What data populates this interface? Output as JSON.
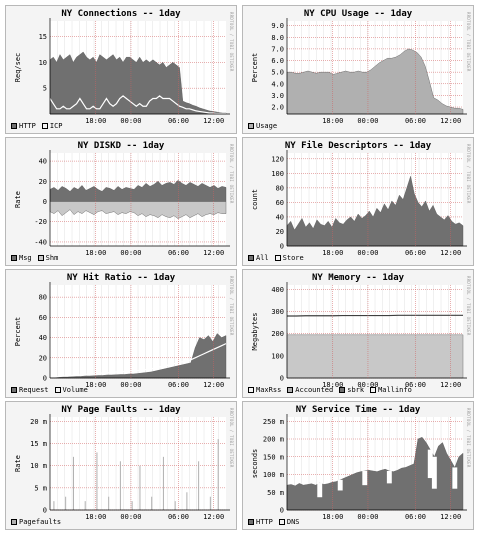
{
  "panels": [
    {
      "title": "NY Connections -- 1day",
      "ylabel": "Req/sec",
      "yticks": [
        "5",
        "10",
        "15"
      ],
      "ytick_values": [
        5,
        10,
        15
      ],
      "ylim": [
        0,
        18
      ],
      "legend": [
        {
          "label": "HTTP",
          "color": "#707070"
        },
        {
          "label": "ICP",
          "color": "#f4f4f4"
        }
      ],
      "watermark": "RRDTOOL / TOBI OETIKER",
      "chart_data": {
        "type": "area",
        "xticks": [
          "18:00",
          "00:00",
          "06:00",
          "12:00"
        ],
        "series": [
          {
            "name": "HTTP",
            "kind": "area",
            "color": "#707070",
            "values": [
              10.5,
              11,
              10,
              11.5,
              10.5,
              11,
              11.5,
              10,
              11,
              11.5,
              12,
              11,
              10.5,
              11,
              10,
              11.5,
              11,
              10.5,
              11,
              11.5,
              10.5,
              11,
              10,
              11,
              11,
              10.5,
              10,
              11,
              10,
              10.5,
              10,
              10.5,
              10,
              9.5,
              10,
              9,
              9.5,
              10,
              9.5,
              9,
              2.5,
              2.2,
              2,
              1.7,
              1.5,
              1.2,
              1,
              0.8,
              0.6,
              0.5,
              0.4,
              0.3,
              0.2,
              0.2
            ]
          },
          {
            "name": "ICP",
            "kind": "line",
            "color": "#ffffff",
            "values": [
              3,
              2,
              1,
              1,
              1.5,
              1,
              1,
              1.5,
              2,
              3,
              2,
              1,
              1,
              1.5,
              1,
              1,
              2,
              3,
              2,
              1.5,
              2,
              3,
              3.5,
              3,
              2.5,
              2,
              1.5,
              2,
              1.5,
              1.5,
              2.5,
              3,
              3,
              3.5,
              3,
              3,
              3,
              2.5,
              2,
              1.5,
              1.3,
              1,
              1,
              0.8,
              0.6,
              0.5,
              0.4,
              0.3,
              0.2,
              0.2,
              0.1,
              0.1,
              0.1,
              0.1
            ]
          }
        ]
      }
    },
    {
      "title": "NY CPU Usage -- 1day",
      "ylabel": "Percent",
      "yticks": [
        "2.0",
        "3.0",
        "4.0",
        "5.0",
        "6.0",
        "7.0",
        "8.0",
        "9.0"
      ],
      "ytick_values": [
        2,
        3,
        4,
        5,
        6,
        7,
        8,
        9
      ],
      "ylim": [
        1.4,
        9.4
      ],
      "legend": [
        {
          "label": "Usage",
          "color": "#b0b0b0"
        }
      ],
      "watermark": "RRDTOOL / TOBI OETIKER",
      "chart_data": {
        "type": "area",
        "xticks": [
          "18:00",
          "00:00",
          "06:00",
          "12:00"
        ],
        "series": [
          {
            "name": "Usage",
            "kind": "area",
            "color": "#b0b0b0",
            "values": [
              5.0,
              5.0,
              4.9,
              4.9,
              5.0,
              5.1,
              5.0,
              4.9,
              5.0,
              5.0,
              5.0,
              4.8,
              4.9,
              5.0,
              5.1,
              5.0,
              5.0,
              5.1,
              5.0,
              5.0,
              5.2,
              5.5,
              5.8,
              6.0,
              6.2,
              6.2,
              6.3,
              6.5,
              6.8,
              7.0,
              6.9,
              6.7,
              6.3,
              5.5,
              4.2,
              2.8,
              2.6,
              2.3,
              2.1,
              2.0,
              1.9,
              1.9,
              1.8
            ]
          }
        ]
      }
    },
    {
      "title": "NY DISKD -- 1day",
      "ylabel": "Rate",
      "yticks": [
        "-40",
        "-20",
        "0",
        "20",
        "40"
      ],
      "ytick_values": [
        -40,
        -20,
        0,
        20,
        40
      ],
      "ylim": [
        -44,
        48
      ],
      "legend": [
        {
          "label": "Msg",
          "color": "#707070"
        },
        {
          "label": "Shm",
          "color": "#c8c8c8"
        }
      ],
      "watermark": "RRDTOOL / TOBI OETIKER",
      "chart_data": {
        "type": "area",
        "xticks": [
          "18:00",
          "00:00",
          "06:00",
          "12:00"
        ],
        "series": [
          {
            "name": "Msg",
            "kind": "area",
            "color": "#707070",
            "values": [
              12,
              14,
              11,
              15,
              13,
              10,
              14,
              12,
              16,
              11,
              13,
              15,
              12,
              10,
              14,
              13,
              11,
              15,
              12,
              14,
              13,
              12,
              16,
              14,
              18,
              15,
              17,
              20,
              16,
              18,
              19,
              17,
              21,
              18,
              16,
              19,
              17,
              15,
              18,
              16,
              14,
              16,
              13,
              15,
              14
            ]
          },
          {
            "name": "Shm",
            "kind": "negarea",
            "color": "#c8c8c8",
            "values": [
              -10,
              -12,
              -9,
              -14,
              -11,
              -8,
              -13,
              -10,
              -12,
              -9,
              -11,
              -13,
              -10,
              -9,
              -12,
              -11,
              -10,
              -13,
              -11,
              -12,
              -10,
              -11,
              -14,
              -12,
              -15,
              -13,
              -14,
              -16,
              -13,
              -15,
              -16,
              -14,
              -17,
              -15,
              -13,
              -16,
              -14,
              -12,
              -15,
              -13,
              -12,
              -13,
              -11,
              -12,
              -12
            ]
          }
        ]
      }
    },
    {
      "title": "NY File Descriptors -- 1day",
      "ylabel": "count",
      "yticks": [
        "0",
        "20",
        "40",
        "60",
        "80",
        "100",
        "120"
      ],
      "ytick_values": [
        0,
        20,
        40,
        60,
        80,
        100,
        120
      ],
      "ylim": [
        0,
        128
      ],
      "legend": [
        {
          "label": "All",
          "color": "#707070"
        },
        {
          "label": "Store",
          "color": "#f4f4f4"
        }
      ],
      "watermark": "RRDTOOL / TOBI OETIKER",
      "chart_data": {
        "type": "area",
        "xticks": [
          "18:00",
          "00:00",
          "06:00",
          "12:00"
        ],
        "series": [
          {
            "name": "All",
            "kind": "area",
            "color": "#707070",
            "values": [
              28,
              34,
              22,
              30,
              38,
              26,
              32,
              24,
              36,
              30,
              28,
              34,
              26,
              38,
              32,
              30,
              36,
              40,
              34,
              44,
              38,
              42,
              48,
              40,
              52,
              46,
              58,
              50,
              62,
              56,
              70,
              64,
              80,
              96,
              72,
              60,
              54,
              62,
              48,
              56,
              44,
              40,
              36,
              42,
              34,
              30,
              32,
              28
            ]
          }
        ]
      }
    },
    {
      "title": "NY Hit Ratio -- 1day",
      "ylabel": "Percent",
      "yticks": [
        "0",
        "20",
        "40",
        "60",
        "80"
      ],
      "ytick_values": [
        0,
        20,
        40,
        60,
        80
      ],
      "ylim": [
        0,
        92
      ],
      "legend": [
        {
          "label": "Request",
          "color": "#707070"
        },
        {
          "label": "Volume",
          "color": "#f4f4f4"
        }
      ],
      "watermark": "RRDTOOL / TOBI OETIKER",
      "chart_data": {
        "type": "area",
        "xticks": [
          "18:00",
          "00:00",
          "06:00",
          "12:00"
        ],
        "series": [
          {
            "name": "Request",
            "kind": "area",
            "color": "#707070",
            "values": [
              0.5,
              0.5,
              0.8,
              1,
              1,
              1.2,
              1.5,
              1.5,
              2,
              2,
              2.2,
              2.5,
              2.5,
              3,
              3,
              3.2,
              3.5,
              3.5,
              4,
              4,
              4.5,
              5,
              5.5,
              6,
              7,
              8,
              9,
              10,
              11,
              12,
              13,
              14,
              15,
              30,
              40,
              38,
              42,
              36,
              44,
              40,
              42
            ]
          },
          {
            "name": "Volume",
            "kind": "line",
            "color": "#ffffff",
            "values": [
              1,
              1,
              1.5,
              2,
              2,
              2.5,
              3,
              3,
              3.5,
              4,
              4,
              4.5,
              5,
              5,
              5.5,
              6,
              6,
              6.5,
              7,
              7,
              7.5,
              8,
              8.5,
              9,
              10,
              11,
              12,
              13,
              14,
              15,
              16,
              17,
              18,
              20,
              22,
              24,
              26,
              28,
              30,
              32,
              34
            ]
          }
        ]
      }
    },
    {
      "title": "NY Memory -- 1day",
      "ylabel": "Megabytes",
      "yticks": [
        "0",
        "100",
        "200",
        "300",
        "400"
      ],
      "ytick_values": [
        0,
        100,
        200,
        300,
        400
      ],
      "ylim": [
        0,
        420
      ],
      "legend": [
        {
          "label": "MaxRss",
          "color": "#f4f4f4"
        },
        {
          "label": "Accounted",
          "color": "#b0b0b0"
        },
        {
          "label": "sbrk",
          "color": "#707070"
        },
        {
          "label": "Mallinfo",
          "color": "#f4f4f4"
        }
      ],
      "watermark": "RRDTOOL / TOBI OETIKER",
      "chart_data": {
        "type": "area",
        "xticks": [
          "18:00",
          "00:00",
          "06:00",
          "12:00"
        ],
        "series": [
          {
            "name": "Accounted",
            "kind": "area",
            "color": "#c8c8c8",
            "values": [
              195,
              195,
              195,
              195,
              195,
              195,
              195,
              195,
              195,
              195,
              195,
              195,
              195,
              195,
              195,
              195,
              195,
              195,
              195,
              195
            ]
          },
          {
            "name": "sbrk",
            "kind": "line",
            "color": "#404040",
            "values": [
              280,
              280,
              281,
              281,
              281,
              281,
              282,
              282,
              282,
              282,
              282,
              282,
              283,
              283,
              283,
              283,
              283,
              283,
              283,
              283
            ]
          }
        ]
      }
    },
    {
      "title": "NY Page Faults -- 1day",
      "ylabel": "Rate",
      "yticks": [
        "0",
        "5 m",
        "10 m",
        "15 m",
        "20 m"
      ],
      "ytick_values": [
        0,
        5,
        10,
        15,
        20
      ],
      "ylim": [
        0,
        21
      ],
      "legend": [
        {
          "label": "Pagefaults",
          "color": "#b0b0b0"
        }
      ],
      "watermark": "RRDTOOL / TOBI OETIKER",
      "chart_data": {
        "type": "bar",
        "xticks": [
          "18:00",
          "00:00",
          "06:00",
          "12:00"
        ],
        "series": [
          {
            "name": "Pagefaults",
            "kind": "spikes",
            "color": "#b0b0b0",
            "values": [
              0,
              2,
              0,
              0,
              3,
              0,
              12,
              0,
              0,
              2,
              0,
              0,
              13,
              0,
              0,
              3,
              0,
              0,
              11,
              0,
              0,
              2,
              0,
              10,
              0,
              0,
              3,
              0,
              0,
              12,
              0,
              0,
              2,
              0,
              0,
              4,
              0,
              0,
              11,
              0,
              0,
              3,
              0,
              16,
              0,
              0
            ]
          }
        ]
      }
    },
    {
      "title": "NY Service Time -- 1day",
      "ylabel": "seconds",
      "yticks": [
        "0",
        "50 m",
        "100 m",
        "150 m",
        "200 m",
        "250 m"
      ],
      "ytick_values": [
        0,
        50,
        100,
        150,
        200,
        250
      ],
      "ylim": [
        0,
        262
      ],
      "legend": [
        {
          "label": "HTTP",
          "color": "#707070"
        },
        {
          "label": "DNS",
          "color": "#f4f4f4"
        }
      ],
      "watermark": "RRDTOOL / TOBI OETIKER",
      "chart_data": {
        "type": "area",
        "xticks": [
          "18:00",
          "00:00",
          "06:00",
          "12:00"
        ],
        "series": [
          {
            "name": "HTTP",
            "kind": "area",
            "color": "#707070",
            "values": [
              70,
              72,
              68,
              75,
              70,
              72,
              74,
              70,
              76,
              72,
              74,
              78,
              80,
              85,
              90,
              95,
              100,
              105,
              108,
              110,
              112,
              110,
              108,
              112,
              115,
              110,
              108,
              112,
              118,
              120,
              125,
              130,
              200,
              205,
              190,
              170,
              150,
              180,
              190,
              160,
              140,
              120,
              150,
              160
            ]
          },
          {
            "name": "DNS",
            "kind": "dips",
            "color": "#f4f4f4",
            "values": [
              0,
              0,
              0,
              0,
              0,
              0,
              0,
              0,
              40,
              0,
              0,
              0,
              0,
              30,
              0,
              0,
              0,
              0,
              0,
              40,
              0,
              0,
              0,
              0,
              0,
              35,
              0,
              0,
              0,
              0,
              0,
              0,
              0,
              0,
              0,
              80,
              90,
              0,
              0,
              0,
              0,
              60,
              0,
              0
            ]
          }
        ]
      }
    }
  ]
}
